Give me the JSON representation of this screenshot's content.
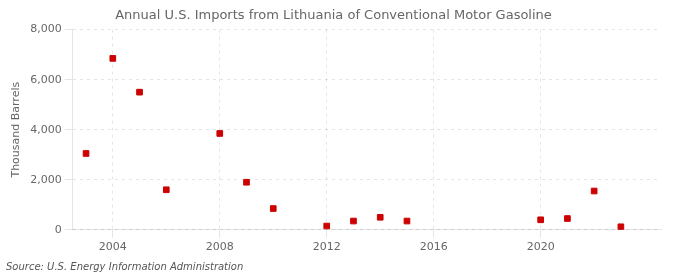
{
  "chart_data": {
    "type": "scatter",
    "title": "Annual U.S. Imports from Lithuania of Conventional Motor Gasoline",
    "ylabel": "Thousand Barrels",
    "annotations": [
      "Source: U.S. Energy Information Administration"
    ],
    "x": [
      2003,
      2004,
      2005,
      2006,
      2008,
      2009,
      2010,
      2012,
      2013,
      2014,
      2015,
      2020,
      2021,
      2022,
      2023
    ],
    "values": [
      3050,
      6850,
      5500,
      1600,
      3850,
      1900,
      850,
      150,
      350,
      500,
      350,
      400,
      450,
      1550,
      120
    ],
    "color": "#CC0000",
    "marker": "square",
    "xlim": [
      2002.5,
      2024.5
    ],
    "xticks": [
      2004,
      2008,
      2012,
      2016,
      2020
    ],
    "ylim": [
      0,
      8000
    ],
    "yticks": [
      0,
      {
        "value": 2000,
        "label": "2,000"
      },
      {
        "value": 4000,
        "label": "4,000"
      },
      {
        "value": 6000,
        "label": "6,000"
      },
      {
        "value": 8000,
        "label": "8,000"
      }
    ],
    "grid": true
  }
}
